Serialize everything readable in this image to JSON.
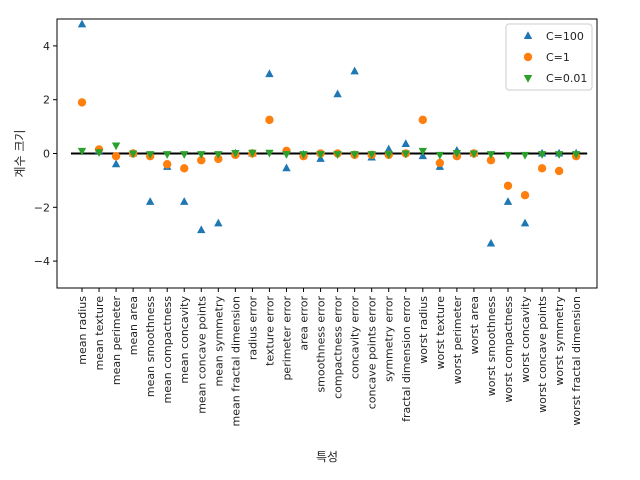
{
  "chart_data": {
    "type": "scatter",
    "title": "",
    "xlabel": "특성",
    "ylabel": "계수 크기",
    "ylim": [
      -5,
      5
    ],
    "yticks": [
      -4,
      -2,
      0,
      2,
      4
    ],
    "ytick_labels": [
      "−4",
      "−2",
      "0",
      "2",
      "4"
    ],
    "hline": 0,
    "legend_position": "top-right",
    "categories": [
      "mean radius",
      "mean texture",
      "mean perimeter",
      "mean area",
      "mean smoothness",
      "mean compactness",
      "mean concavity",
      "mean concave points",
      "mean symmetry",
      "mean fractal dimension",
      "radius error",
      "texture error",
      "perimeter error",
      "area error",
      "smoothness error",
      "compactness error",
      "concavity error",
      "concave points error",
      "symmetry error",
      "fractal dimension error",
      "worst radius",
      "worst texture",
      "worst perimeter",
      "worst area",
      "worst smoothness",
      "worst compactness",
      "worst concavity",
      "worst concave points",
      "worst symmetry",
      "worst fractal dimension"
    ],
    "series": [
      {
        "name": "C=100",
        "marker": "triangle-up",
        "color": "#1f77b4",
        "values": [
          4.8,
          0.1,
          -0.4,
          0.0,
          -1.8,
          -0.5,
          -1.8,
          -2.85,
          -2.6,
          0.0,
          0.0,
          2.95,
          -0.55,
          -0.05,
          -0.2,
          2.2,
          3.05,
          -0.15,
          0.15,
          0.35,
          -0.1,
          -0.5,
          0.1,
          0.0,
          -3.35,
          -1.8,
          -2.6,
          0.0,
          0.0,
          0.0
        ]
      },
      {
        "name": "C=1",
        "marker": "circle",
        "color": "#ff7f0e",
        "values": [
          1.9,
          0.15,
          -0.1,
          0.0,
          -0.1,
          -0.4,
          -0.55,
          -0.25,
          -0.2,
          -0.05,
          0.0,
          1.25,
          0.1,
          -0.1,
          0.0,
          0.0,
          -0.05,
          -0.05,
          -0.05,
          0.0,
          1.25,
          -0.35,
          -0.1,
          0.0,
          -0.25,
          -1.2,
          -1.55,
          -0.55,
          -0.65,
          -0.1
        ]
      },
      {
        "name": "C=0.01",
        "marker": "triangle-down",
        "color": "#2ca02c",
        "values": [
          0.1,
          0.05,
          0.3,
          0.0,
          -0.02,
          -0.02,
          -0.02,
          -0.02,
          -0.02,
          0.02,
          0.03,
          0.03,
          -0.02,
          -0.02,
          -0.02,
          -0.02,
          -0.02,
          -0.02,
          -0.02,
          0.0,
          0.1,
          -0.05,
          0.02,
          0.0,
          -0.02,
          -0.05,
          -0.05,
          -0.02,
          -0.02,
          -0.02
        ]
      }
    ]
  }
}
